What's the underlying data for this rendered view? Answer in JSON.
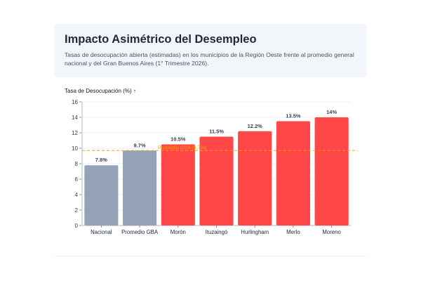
{
  "header": {
    "title": "Impacto Asimétrico del Desempleo",
    "subtitle": "Tasas de desocupación abierta (estimadas) en los municipios de la Región Oeste frente al promedio general nacional y del Gran Buenos Aires (1° Trimestre 2026)."
  },
  "chart_data": {
    "type": "bar",
    "categories": [
      "Nacional",
      "Promedio GBA",
      "Morón",
      "Ituzaingó",
      "Hurlingham",
      "Merlo",
      "Moreno"
    ],
    "values": [
      7.8,
      9.7,
      10.5,
      11.5,
      12.2,
      13.5,
      14
    ],
    "value_labels": [
      "7.8%",
      "9.7%",
      "10.5%",
      "11.5%",
      "12.2%",
      "13.5%",
      "14%"
    ],
    "ylabel": "Tasa de Desocupación (%) ↑",
    "ylim": [
      0,
      16
    ],
    "yticks": [
      0,
      2,
      4,
      6,
      8,
      10,
      12,
      14,
      16
    ],
    "bar_colors": [
      "#94a3b8",
      "#94a3b8",
      "#ff4747",
      "#ff4747",
      "#ff4747",
      "#ff4747",
      "#ff4747"
    ],
    "reference_line": {
      "value": 9.7,
      "label": "Promedio GBA (9.7%)",
      "color": "#f59e0b"
    },
    "grid": true
  }
}
